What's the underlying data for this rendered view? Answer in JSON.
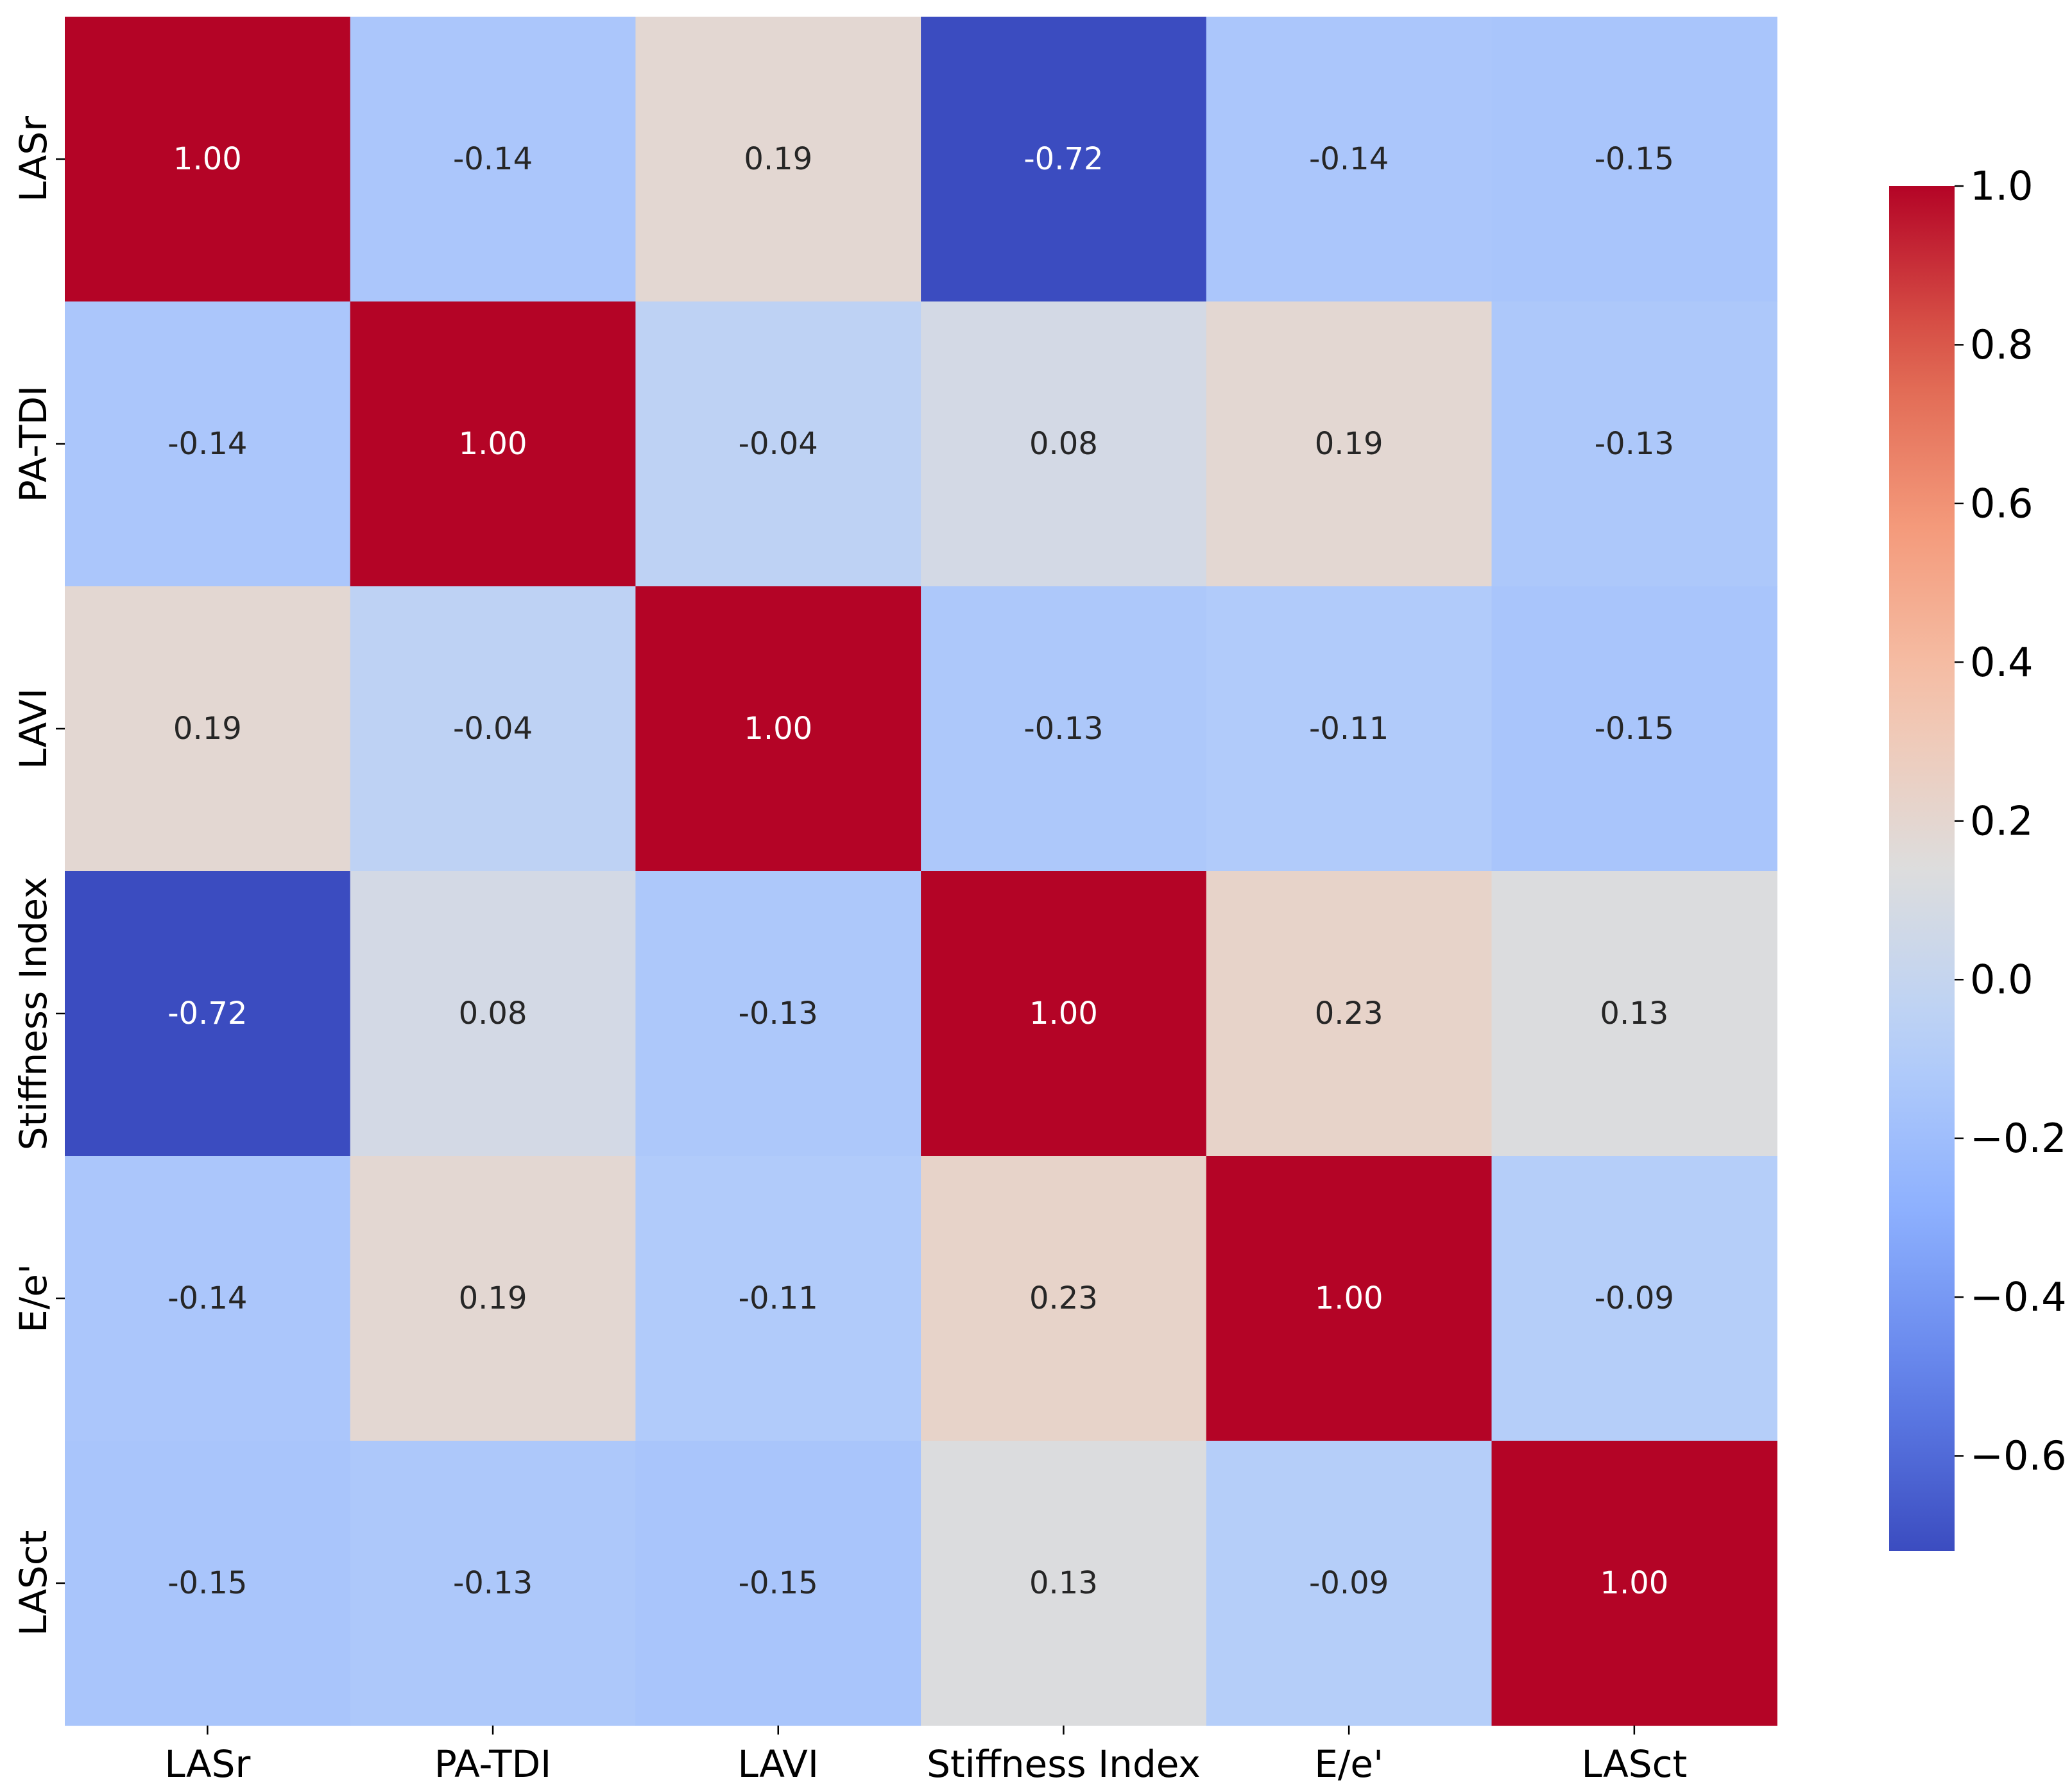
{
  "chart_data": {
    "type": "heatmap",
    "title": "",
    "xlabel": "",
    "ylabel": "",
    "row_labels": [
      "LASr",
      "PA-TDI",
      "LAVI",
      "Stiffness Index",
      "E/e'",
      "LASct"
    ],
    "col_labels": [
      "LASr",
      "PA-TDI",
      "LAVI",
      "Stiffness Index",
      "E/e'",
      "LASct"
    ],
    "values": [
      [
        1.0,
        -0.14,
        0.19,
        -0.72,
        -0.14,
        -0.15
      ],
      [
        -0.14,
        1.0,
        -0.04,
        0.08,
        0.19,
        -0.13
      ],
      [
        0.19,
        -0.04,
        1.0,
        -0.13,
        -0.11,
        -0.15
      ],
      [
        -0.72,
        0.08,
        -0.13,
        1.0,
        0.23,
        0.13
      ],
      [
        -0.14,
        0.19,
        -0.11,
        0.23,
        1.0,
        -0.09
      ],
      [
        -0.15,
        -0.13,
        -0.15,
        0.13,
        -0.09,
        1.0
      ]
    ],
    "value_format": "2 decimals",
    "colormap": "coolwarm",
    "color_range": [
      -0.72,
      1.0
    ],
    "colorbar": {
      "ticks": [
        1.0,
        0.8,
        0.6,
        0.4,
        0.2,
        0.0,
        -0.2,
        -0.4,
        -0.6
      ],
      "tick_labels": [
        "1.0",
        "0.8",
        "0.6",
        "0.4",
        "0.2",
        "0.0",
        "−0.2",
        "−0.4",
        "−0.6"
      ],
      "placement": "right"
    }
  }
}
